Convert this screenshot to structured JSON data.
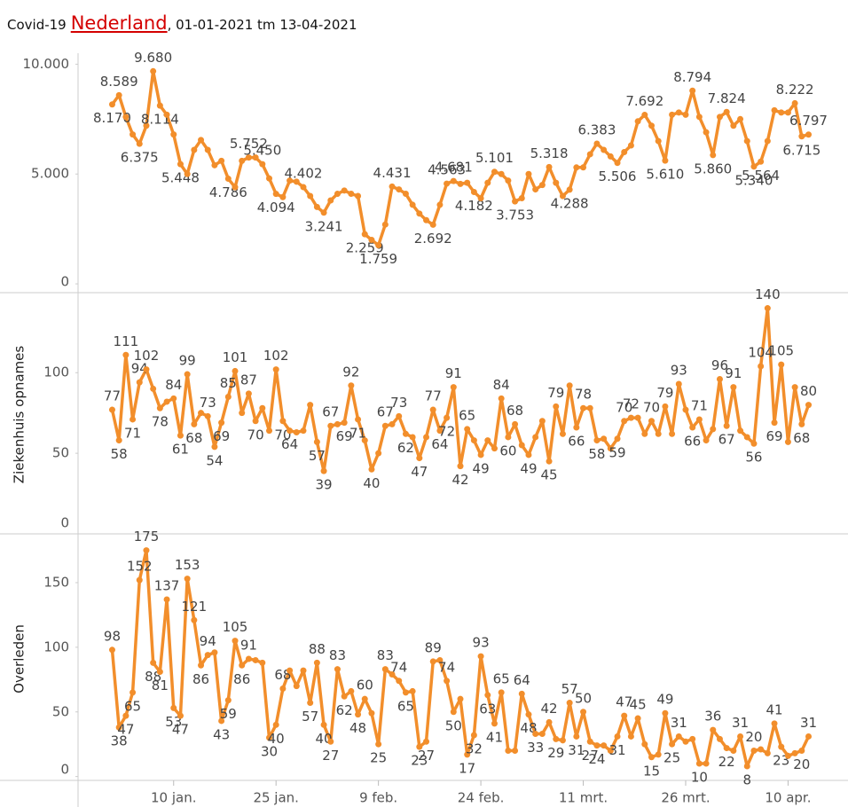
{
  "header": {
    "title": "Covid-19",
    "link": "Nederland",
    "subtitle": ", 01-01-2021 tm 13-04-2021"
  },
  "chart_data": [
    {
      "type": "line",
      "color": "#f28e2b",
      "xlim": [
        -4,
        108
      ],
      "ylim": [
        -400,
        10500
      ],
      "yticks": [
        {
          "value": 10000,
          "label": "10.000"
        },
        {
          "value": 5000,
          "label": "5.000"
        },
        0
      ],
      "x": [
        1,
        2,
        3,
        4,
        5,
        6,
        7,
        8,
        9,
        10,
        11,
        12,
        13,
        14,
        15,
        16,
        17,
        18,
        19,
        20,
        21,
        22,
        23,
        24,
        25,
        26,
        27,
        28,
        29,
        30,
        31,
        32,
        33,
        34,
        35,
        36,
        37,
        38,
        39,
        40,
        41,
        42,
        43,
        44,
        45,
        46,
        47,
        48,
        49,
        50,
        51,
        52,
        53,
        54,
        55,
        56,
        57,
        58,
        59,
        60,
        61,
        62,
        63,
        64,
        65,
        66,
        67,
        68,
        69,
        70,
        71,
        72,
        73,
        74,
        75,
        76,
        77,
        78,
        79,
        80,
        81,
        82,
        83,
        84,
        85,
        86,
        87,
        88,
        89,
        90,
        91,
        92,
        93,
        94,
        95,
        96,
        97,
        98,
        99,
        100,
        101,
        102,
        103
      ],
      "values": [
        8170,
        8589,
        7600,
        6800,
        6375,
        7200,
        9680,
        8114,
        7700,
        6800,
        5448,
        5000,
        6100,
        6550,
        6100,
        5400,
        5600,
        4786,
        4400,
        5600,
        5752,
        5750,
        5450,
        4800,
        4094,
        3950,
        4700,
        4650,
        4402,
        4000,
        3500,
        3241,
        3800,
        4100,
        4250,
        4100,
        4000,
        2259,
        2000,
        1759,
        2700,
        4431,
        4300,
        4100,
        3600,
        3200,
        2900,
        2692,
        3600,
        4563,
        4681,
        4550,
        4600,
        4182,
        3900,
        4600,
        5101,
        5000,
        4700,
        3753,
        3900,
        5000,
        4300,
        4500,
        5318,
        4600,
        4000,
        4288,
        5300,
        5300,
        5900,
        6383,
        6100,
        5800,
        5506,
        6000,
        6300,
        7400,
        7692,
        7200,
        6500,
        5610,
        7700,
        7800,
        7700,
        8794,
        7600,
        6900,
        5860,
        7600,
        7824,
        7200,
        7500,
        6500,
        5340,
        5564,
        6500,
        7900,
        7800,
        7800,
        8222,
        6715,
        6797
      ],
      "value_labels": [
        "8.170",
        "8.589",
        null,
        null,
        "6.375",
        null,
        "9.680",
        "8.114",
        null,
        null,
        "5.448",
        null,
        null,
        null,
        null,
        null,
        null,
        "4.786",
        null,
        null,
        "5.752",
        null,
        "5.450",
        null,
        "4.094",
        null,
        null,
        null,
        "4.402",
        null,
        null,
        "3.241",
        null,
        null,
        null,
        null,
        null,
        "2.259",
        null,
        "1.759",
        null,
        "4.431",
        null,
        null,
        null,
        null,
        null,
        "2.692",
        null,
        "4.563",
        "4.681",
        null,
        null,
        "4.182",
        null,
        null,
        "5.101",
        null,
        null,
        "3.753",
        null,
        null,
        null,
        null,
        "5.318",
        null,
        null,
        "4.288",
        null,
        null,
        null,
        "6.383",
        null,
        null,
        "5.506",
        null,
        null,
        null,
        "7.692",
        null,
        null,
        "5.610",
        null,
        null,
        null,
        "8.794",
        null,
        null,
        "5.860",
        null,
        "7.824",
        null,
        null,
        null,
        "5.340",
        "5.564",
        null,
        null,
        null,
        null,
        "8.222",
        "6.715",
        "6.797"
      ]
    },
    {
      "type": "line",
      "color": "#f28e2b",
      "ylabel": "Ziekenhuis opnames",
      "xlim": [
        -4,
        108
      ],
      "ylim": [
        0,
        148
      ],
      "yticks": [
        100,
        50,
        0
      ],
      "x": [
        1,
        2,
        3,
        4,
        5,
        6,
        7,
        8,
        9,
        10,
        11,
        12,
        13,
        14,
        15,
        16,
        17,
        18,
        19,
        20,
        21,
        22,
        23,
        24,
        25,
        26,
        27,
        28,
        29,
        30,
        31,
        32,
        33,
        34,
        35,
        36,
        37,
        38,
        39,
        40,
        41,
        42,
        43,
        44,
        45,
        46,
        47,
        48,
        49,
        50,
        51,
        52,
        53,
        54,
        55,
        56,
        57,
        58,
        59,
        60,
        61,
        62,
        63,
        64,
        65,
        66,
        67,
        68,
        69,
        70,
        71,
        72,
        73,
        74,
        75,
        76,
        77,
        78,
        79,
        80,
        81,
        82,
        83,
        84,
        85,
        86,
        87,
        88,
        89,
        90,
        91,
        92,
        93,
        94,
        95,
        96,
        97,
        98,
        99,
        100,
        101,
        102,
        103
      ],
      "values": [
        77,
        58,
        111,
        71,
        94,
        102,
        90,
        78,
        82,
        84,
        61,
        99,
        68,
        75,
        73,
        54,
        69,
        85,
        101,
        75,
        87,
        70,
        78,
        64,
        102,
        70,
        64,
        63,
        64,
        80,
        57,
        39,
        67,
        68,
        69,
        92,
        71,
        58,
        40,
        50,
        67,
        68,
        73,
        62,
        60,
        47,
        60,
        77,
        64,
        72,
        91,
        42,
        65,
        58,
        49,
        58,
        53,
        84,
        60,
        68,
        55,
        49,
        60,
        70,
        45,
        79,
        62,
        92,
        66,
        78,
        78,
        58,
        59,
        53,
        59,
        70,
        72,
        72,
        62,
        70,
        62,
        79,
        62,
        93,
        77,
        66,
        71,
        58,
        65,
        96,
        67,
        91,
        64,
        60,
        56,
        104,
        140,
        69,
        105,
        57,
        91,
        68,
        80
      ],
      "value_labels": [
        "77",
        "58",
        "111",
        "71",
        "94",
        "102",
        null,
        "78",
        null,
        "84",
        "61",
        "99",
        "68",
        null,
        "73",
        "54",
        "69",
        "85",
        "101",
        null,
        "87",
        "70",
        null,
        null,
        "102",
        "70",
        "64",
        null,
        null,
        null,
        "57",
        "39",
        "67",
        null,
        "69",
        "92",
        "71",
        null,
        "40",
        null,
        "67",
        null,
        "73",
        "62",
        null,
        "47",
        null,
        "77",
        "64",
        "72",
        "91",
        "42",
        "65",
        null,
        "49",
        null,
        null,
        "84",
        "60",
        "68",
        null,
        "49",
        null,
        null,
        "45",
        "79",
        null,
        null,
        "66",
        "78",
        null,
        "58",
        null,
        null,
        "59",
        "70",
        "72",
        null,
        null,
        "70",
        null,
        "79",
        null,
        "93",
        null,
        "66",
        "71",
        null,
        null,
        "96",
        "67",
        "91",
        null,
        null,
        "56",
        "104",
        "140",
        "69",
        "105",
        null,
        null,
        "68",
        "80"
      ]
    },
    {
      "type": "line",
      "color": "#f28e2b",
      "ylabel": "Overleden",
      "xlim": [
        -4,
        108
      ],
      "ylim": [
        -3,
        185
      ],
      "yticks": [
        150,
        100,
        50,
        0
      ],
      "xticks": [
        {
          "value": 10,
          "label": "10 jan."
        },
        {
          "value": 25,
          "label": "25 jan."
        },
        {
          "value": 40,
          "label": "9 feb."
        },
        {
          "value": 55,
          "label": "24 feb."
        },
        {
          "value": 70,
          "label": "11 mrt."
        },
        {
          "value": 85,
          "label": "26 mrt."
        },
        {
          "value": 100,
          "label": "10 apr."
        }
      ],
      "x": [
        1,
        2,
        3,
        4,
        5,
        6,
        7,
        8,
        9,
        10,
        11,
        12,
        13,
        14,
        15,
        16,
        17,
        18,
        19,
        20,
        21,
        22,
        23,
        24,
        25,
        26,
        27,
        28,
        29,
        30,
        31,
        32,
        33,
        34,
        35,
        36,
        37,
        38,
        39,
        40,
        41,
        42,
        43,
        44,
        45,
        46,
        47,
        48,
        49,
        50,
        51,
        52,
        53,
        54,
        55,
        56,
        57,
        58,
        59,
        60,
        61,
        62,
        63,
        64,
        65,
        66,
        67,
        68,
        69,
        70,
        71,
        72,
        73,
        74,
        75,
        76,
        77,
        78,
        79,
        80,
        81,
        82,
        83,
        84,
        85,
        86,
        87,
        88,
        89,
        90,
        91,
        92,
        93,
        94,
        95,
        96,
        97,
        98,
        99,
        100,
        101,
        102,
        103
      ],
      "values": [
        98,
        38,
        47,
        65,
        152,
        175,
        88,
        81,
        137,
        53,
        47,
        153,
        121,
        86,
        94,
        96,
        43,
        59,
        105,
        86,
        91,
        90,
        88,
        30,
        40,
        68,
        82,
        70,
        82,
        57,
        88,
        40,
        27,
        83,
        62,
        66,
        48,
        60,
        49,
        25,
        83,
        79,
        74,
        65,
        66,
        23,
        27,
        89,
        90,
        74,
        50,
        60,
        17,
        32,
        93,
        63,
        41,
        65,
        20,
        20,
        64,
        48,
        33,
        33,
        42,
        29,
        28,
        57,
        31,
        50,
        27,
        24,
        24,
        20,
        31,
        47,
        31,
        45,
        25,
        15,
        17,
        49,
        25,
        31,
        27,
        29,
        10,
        10,
        36,
        29,
        22,
        20,
        31,
        8,
        20,
        21,
        18,
        41,
        23,
        16,
        18,
        20,
        31
      ],
      "value_labels": [
        "98",
        "38",
        "47",
        "65",
        "152",
        "175",
        "88",
        "81",
        "137",
        "53",
        "47",
        "153",
        "121",
        "86",
        "94",
        null,
        "43",
        "59",
        "105",
        "86",
        "91",
        null,
        null,
        "30",
        "40",
        "68",
        null,
        null,
        null,
        "57",
        "88",
        "40",
        "27",
        "83",
        "62",
        null,
        "48",
        "60",
        null,
        "25",
        "83",
        null,
        "74",
        "65",
        null,
        "23",
        "27",
        "89",
        null,
        "74",
        "50",
        null,
        "17",
        "32",
        "93",
        "63",
        "41",
        "65",
        null,
        null,
        "64",
        "48",
        "33",
        null,
        "42",
        "29",
        null,
        "57",
        "31",
        "50",
        "27",
        "24",
        null,
        null,
        "31",
        "47",
        null,
        "45",
        null,
        "15",
        null,
        "49",
        "25",
        "31",
        null,
        null,
        "10",
        null,
        "36",
        null,
        "22",
        null,
        "31",
        "8",
        "20",
        null,
        null,
        "41",
        "23",
        null,
        null,
        "20",
        "31"
      ]
    }
  ]
}
